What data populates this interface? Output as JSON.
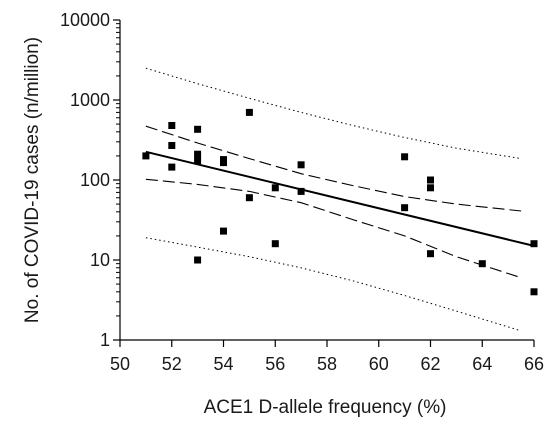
{
  "chart_data": {
    "type": "scatter",
    "title": "",
    "xlabel": "ACE1 D-allele frequency (%)",
    "ylabel": "No. of COVID-19 cases (n/million)",
    "xlim": [
      50,
      66
    ],
    "ylim": [
      1,
      10000
    ],
    "yscale": "log",
    "grid": false,
    "legend": "none",
    "x_ticks": [
      50,
      52,
      54,
      56,
      58,
      60,
      62,
      64,
      66
    ],
    "y_ticks": [
      1,
      10,
      100,
      1000,
      10000
    ],
    "colors": {
      "axis": "#000000",
      "points": "#000000",
      "lines": "#000000"
    },
    "points": [
      {
        "x": 51,
        "y": 200
      },
      {
        "x": 52,
        "y": 480
      },
      {
        "x": 52,
        "y": 270
      },
      {
        "x": 52,
        "y": 145
      },
      {
        "x": 53,
        "y": 430
      },
      {
        "x": 53,
        "y": 210
      },
      {
        "x": 53,
        "y": 175
      },
      {
        "x": 53,
        "y": 10
      },
      {
        "x": 54,
        "y": 180
      },
      {
        "x": 54,
        "y": 165
      },
      {
        "x": 54,
        "y": 23
      },
      {
        "x": 55,
        "y": 700
      },
      {
        "x": 55,
        "y": 60
      },
      {
        "x": 56,
        "y": 80
      },
      {
        "x": 56,
        "y": 16
      },
      {
        "x": 57,
        "y": 155
      },
      {
        "x": 57,
        "y": 72
      },
      {
        "x": 61,
        "y": 195
      },
      {
        "x": 61,
        "y": 45
      },
      {
        "x": 62,
        "y": 100
      },
      {
        "x": 62,
        "y": 80
      },
      {
        "x": 62,
        "y": 12
      },
      {
        "x": 64,
        "y": 9
      },
      {
        "x": 66,
        "y": 16
      },
      {
        "x": 66,
        "y": 4
      }
    ],
    "lines": {
      "regression": [
        {
          "x": 51,
          "y": 225
        },
        {
          "x": 66,
          "y": 15
        }
      ],
      "confidence_upper": [
        {
          "x": 51,
          "y": 470
        },
        {
          "x": 53,
          "y": 290
        },
        {
          "x": 55,
          "y": 185
        },
        {
          "x": 57,
          "y": 120
        },
        {
          "x": 59,
          "y": 85
        },
        {
          "x": 61,
          "y": 62
        },
        {
          "x": 63,
          "y": 50
        },
        {
          "x": 65.5,
          "y": 41
        }
      ],
      "confidence_lower": [
        {
          "x": 51,
          "y": 102
        },
        {
          "x": 53,
          "y": 88
        },
        {
          "x": 55,
          "y": 72
        },
        {
          "x": 57,
          "y": 52
        },
        {
          "x": 59,
          "y": 32
        },
        {
          "x": 61,
          "y": 20
        },
        {
          "x": 63,
          "y": 11
        },
        {
          "x": 65.5,
          "y": 6
        }
      ],
      "prediction_upper": [
        {
          "x": 51,
          "y": 2500
        },
        {
          "x": 53,
          "y": 1600
        },
        {
          "x": 55,
          "y": 1050
        },
        {
          "x": 57,
          "y": 700
        },
        {
          "x": 59,
          "y": 480
        },
        {
          "x": 61,
          "y": 340
        },
        {
          "x": 63,
          "y": 250
        },
        {
          "x": 65.5,
          "y": 185
        }
      ],
      "prediction_lower": [
        {
          "x": 51,
          "y": 19
        },
        {
          "x": 53,
          "y": 14.5
        },
        {
          "x": 55,
          "y": 11
        },
        {
          "x": 57,
          "y": 8
        },
        {
          "x": 59,
          "y": 5.5
        },
        {
          "x": 61,
          "y": 3.6
        },
        {
          "x": 63,
          "y": 2.3
        },
        {
          "x": 65.5,
          "y": 1.3
        }
      ]
    }
  }
}
